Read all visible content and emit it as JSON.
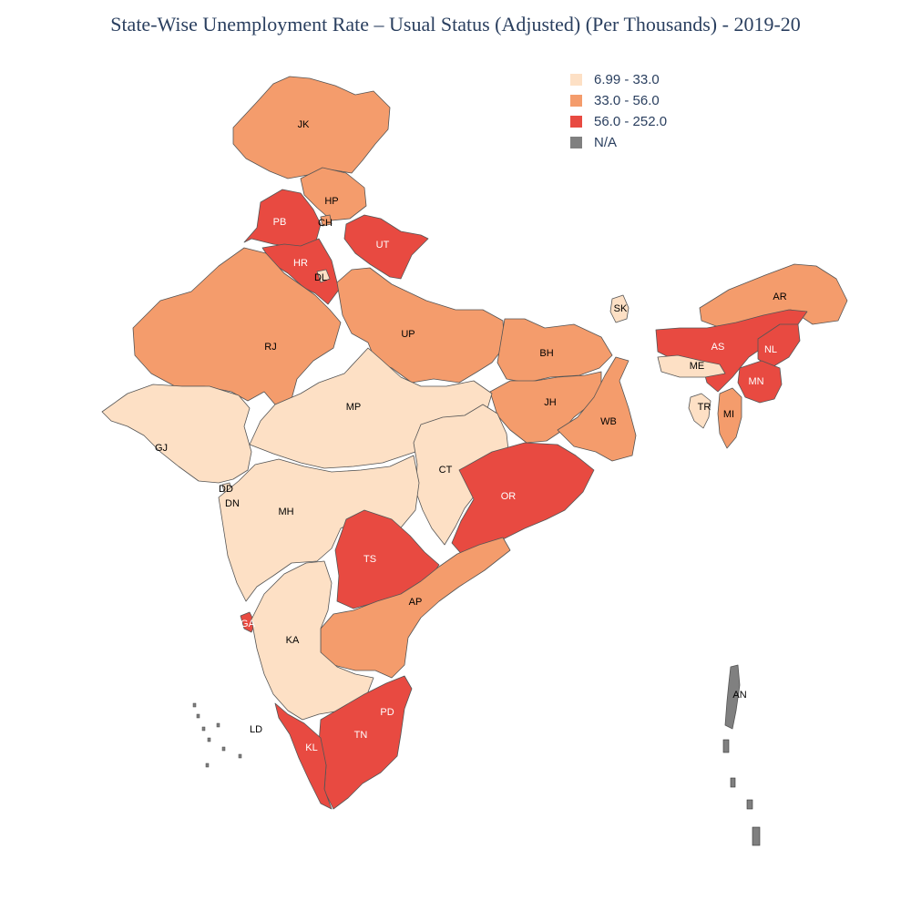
{
  "title": "State-Wise Unemployment Rate – Usual Status (Adjusted) (Per Thousands) - 2019-20",
  "legend": [
    {
      "label": "6.99 - 33.0",
      "color": "#fde0c5"
    },
    {
      "label": "33.0 - 56.0",
      "color": "#f49c6c"
    },
    {
      "label": "56.0 - 252.0",
      "color": "#e84a41"
    },
    {
      "label": "N/A",
      "color": "#808080"
    }
  ],
  "regions": [
    {
      "code": "JK",
      "bin": 1
    },
    {
      "code": "HP",
      "bin": 1
    },
    {
      "code": "PB",
      "bin": 2
    },
    {
      "code": "CH",
      "bin": 1
    },
    {
      "code": "UT",
      "bin": 2
    },
    {
      "code": "HR",
      "bin": 2
    },
    {
      "code": "DL",
      "bin": 0
    },
    {
      "code": "RJ",
      "bin": 1
    },
    {
      "code": "UP",
      "bin": 1
    },
    {
      "code": "BH",
      "bin": 1
    },
    {
      "code": "SK",
      "bin": 0
    },
    {
      "code": "AR",
      "bin": 1
    },
    {
      "code": "AS",
      "bin": 2
    },
    {
      "code": "NL",
      "bin": 2
    },
    {
      "code": "ME",
      "bin": 0
    },
    {
      "code": "MN",
      "bin": 2
    },
    {
      "code": "TR",
      "bin": 0
    },
    {
      "code": "MI",
      "bin": 1
    },
    {
      "code": "JH",
      "bin": 1
    },
    {
      "code": "WB",
      "bin": 1
    },
    {
      "code": "MP",
      "bin": 0
    },
    {
      "code": "GJ",
      "bin": 0
    },
    {
      "code": "DD",
      "bin": 0
    },
    {
      "code": "DN",
      "bin": 0
    },
    {
      "code": "CT",
      "bin": 0
    },
    {
      "code": "MH",
      "bin": 0
    },
    {
      "code": "OR",
      "bin": 2
    },
    {
      "code": "TS",
      "bin": 2
    },
    {
      "code": "AP",
      "bin": 1
    },
    {
      "code": "GA",
      "bin": 2
    },
    {
      "code": "KA",
      "bin": 0
    },
    {
      "code": "LD",
      "bin": 3
    },
    {
      "code": "PD",
      "bin": 2
    },
    {
      "code": "TN",
      "bin": 2
    },
    {
      "code": "KL",
      "bin": 2
    },
    {
      "code": "AN",
      "bin": 3
    }
  ]
}
